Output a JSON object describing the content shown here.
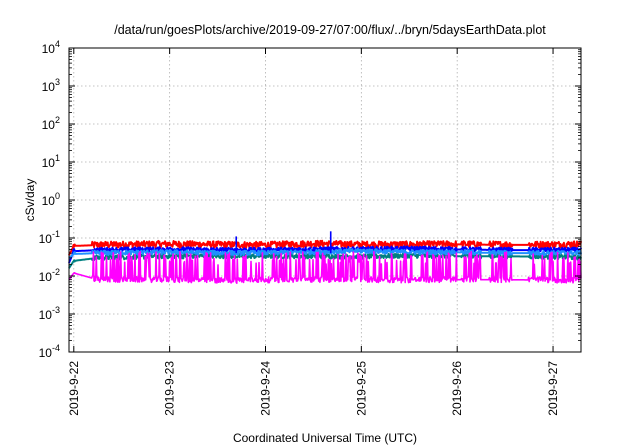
{
  "chart_data": {
    "type": "line",
    "title": "/data/run/goesPlots/archive/2019-09-27/07:00/flux/../bryn/5daysEarthData.plot",
    "xlabel": "Coordinated Universal Time (UTC)",
    "ylabel": "cSv/day",
    "y_scale": "log",
    "ylim": [
      0.0001,
      10000
    ],
    "xlim": [
      "2019-09-21T22:48",
      "2019-09-27T07:00"
    ],
    "grid": true,
    "legend": "none",
    "x_ticks": [
      {
        "label": "2019-9-22",
        "value": "2019-09-22T00:00"
      },
      {
        "label": "2019-9-23",
        "value": "2019-09-23T00:00"
      },
      {
        "label": "2019-9-24",
        "value": "2019-09-24T00:00"
      },
      {
        "label": "2019-9-25",
        "value": "2019-09-25T00:00"
      },
      {
        "label": "2019-9-26",
        "value": "2019-09-26T00:00"
      },
      {
        "label": "2019-9-27",
        "value": "2019-09-27T00:00"
      }
    ],
    "y_ticks": [
      {
        "base": "10",
        "exp": "-4",
        "value": 0.0001
      },
      {
        "base": "10",
        "exp": "-3",
        "value": 0.001
      },
      {
        "base": "10",
        "exp": "-2",
        "value": 0.01
      },
      {
        "base": "10",
        "exp": "-1",
        "value": 0.1
      },
      {
        "base": "10",
        "exp": "0",
        "value": 1
      },
      {
        "base": "10",
        "exp": "1",
        "value": 10
      },
      {
        "base": "10",
        "exp": "2",
        "value": 100
      },
      {
        "base": "10",
        "exp": "3",
        "value": 1000
      },
      {
        "base": "10",
        "exp": "4",
        "value": 10000
      }
    ],
    "gaps": [
      [
        "2019-09-22T00:15",
        "2019-09-22T04:30"
      ],
      [
        "2019-09-25T23:50",
        "2019-09-26T01:00"
      ],
      [
        "2019-09-26T06:00",
        "2019-09-26T08:00"
      ],
      [
        "2019-09-26T13:50",
        "2019-09-26T17:50"
      ]
    ],
    "series": [
      {
        "color": "#ff0000",
        "x": [
          "2019-09-21T22:48",
          "2019-09-22T00:00",
          "2019-09-22T06:00",
          "2019-09-23T00:00",
          "2019-09-23T12:00",
          "2019-09-24T00:00",
          "2019-09-24T12:00",
          "2019-09-25T00:00",
          "2019-09-25T12:00",
          "2019-09-26T00:00",
          "2019-09-26T12:00",
          "2019-09-27T00:00",
          "2019-09-27T07:00"
        ],
        "y": [
          0.035,
          0.062,
          0.065,
          0.068,
          0.066,
          0.064,
          0.07,
          0.066,
          0.066,
          0.068,
          0.066,
          0.066,
          0.068
        ]
      },
      {
        "color": "#008080",
        "x": [
          "2019-09-21T22:48",
          "2019-09-22T00:00",
          "2019-09-22T06:00",
          "2019-09-23T00:00",
          "2019-09-23T12:00",
          "2019-09-24T00:00",
          "2019-09-24T12:00",
          "2019-09-25T00:00",
          "2019-09-25T12:00",
          "2019-09-26T00:00",
          "2019-09-26T12:00",
          "2019-09-27T00:00",
          "2019-09-27T07:00"
        ],
        "y": [
          0.016,
          0.025,
          0.03,
          0.033,
          0.033,
          0.033,
          0.033,
          0.032,
          0.034,
          0.033,
          0.033,
          0.032,
          0.03
        ]
      },
      {
        "color": "#0000ff",
        "x": [
          "2019-09-21T22:48",
          "2019-09-22T00:00",
          "2019-09-22T06:00",
          "2019-09-23T00:00",
          "2019-09-23T12:00",
          "2019-09-24T00:00",
          "2019-09-24T12:00",
          "2019-09-25T00:00",
          "2019-09-25T12:00",
          "2019-09-26T00:00",
          "2019-09-26T12:00",
          "2019-09-27T00:00",
          "2019-09-27T07:00"
        ],
        "y": [
          0.022,
          0.045,
          0.048,
          0.05,
          0.048,
          0.048,
          0.05,
          0.05,
          0.052,
          0.05,
          0.048,
          0.048,
          0.048
        ]
      },
      {
        "color": "#1e90ff",
        "x": [
          "2019-09-21T22:48",
          "2019-09-22T00:00",
          "2019-09-22T06:00",
          "2019-09-23T00:00",
          "2019-09-23T12:00",
          "2019-09-24T00:00",
          "2019-09-24T12:00",
          "2019-09-25T00:00",
          "2019-09-25T12:00",
          "2019-09-26T00:00",
          "2019-09-26T12:00",
          "2019-09-27T00:00",
          "2019-09-27T07:00"
        ],
        "y": [
          0.03,
          0.038,
          0.04,
          0.042,
          0.04,
          0.04,
          0.042,
          0.045,
          0.042,
          0.042,
          0.04,
          0.04,
          0.04
        ]
      },
      {
        "color": "#ff00ff",
        "x": [
          "2019-09-21T22:48",
          "2019-09-22T00:00",
          "2019-09-22T06:00",
          "2019-09-23T00:00",
          "2019-09-23T12:00",
          "2019-09-24T00:00",
          "2019-09-24T12:00",
          "2019-09-25T00:00",
          "2019-09-25T12:00",
          "2019-09-26T00:00",
          "2019-09-26T12:00",
          "2019-09-27T00:00",
          "2019-09-27T07:00"
        ],
        "y": [
          0.008,
          0.012,
          0.008,
          0.008,
          0.0075,
          0.0078,
          0.008,
          0.008,
          0.0078,
          0.008,
          0.008,
          0.0078,
          0.0075
        ]
      }
    ]
  }
}
